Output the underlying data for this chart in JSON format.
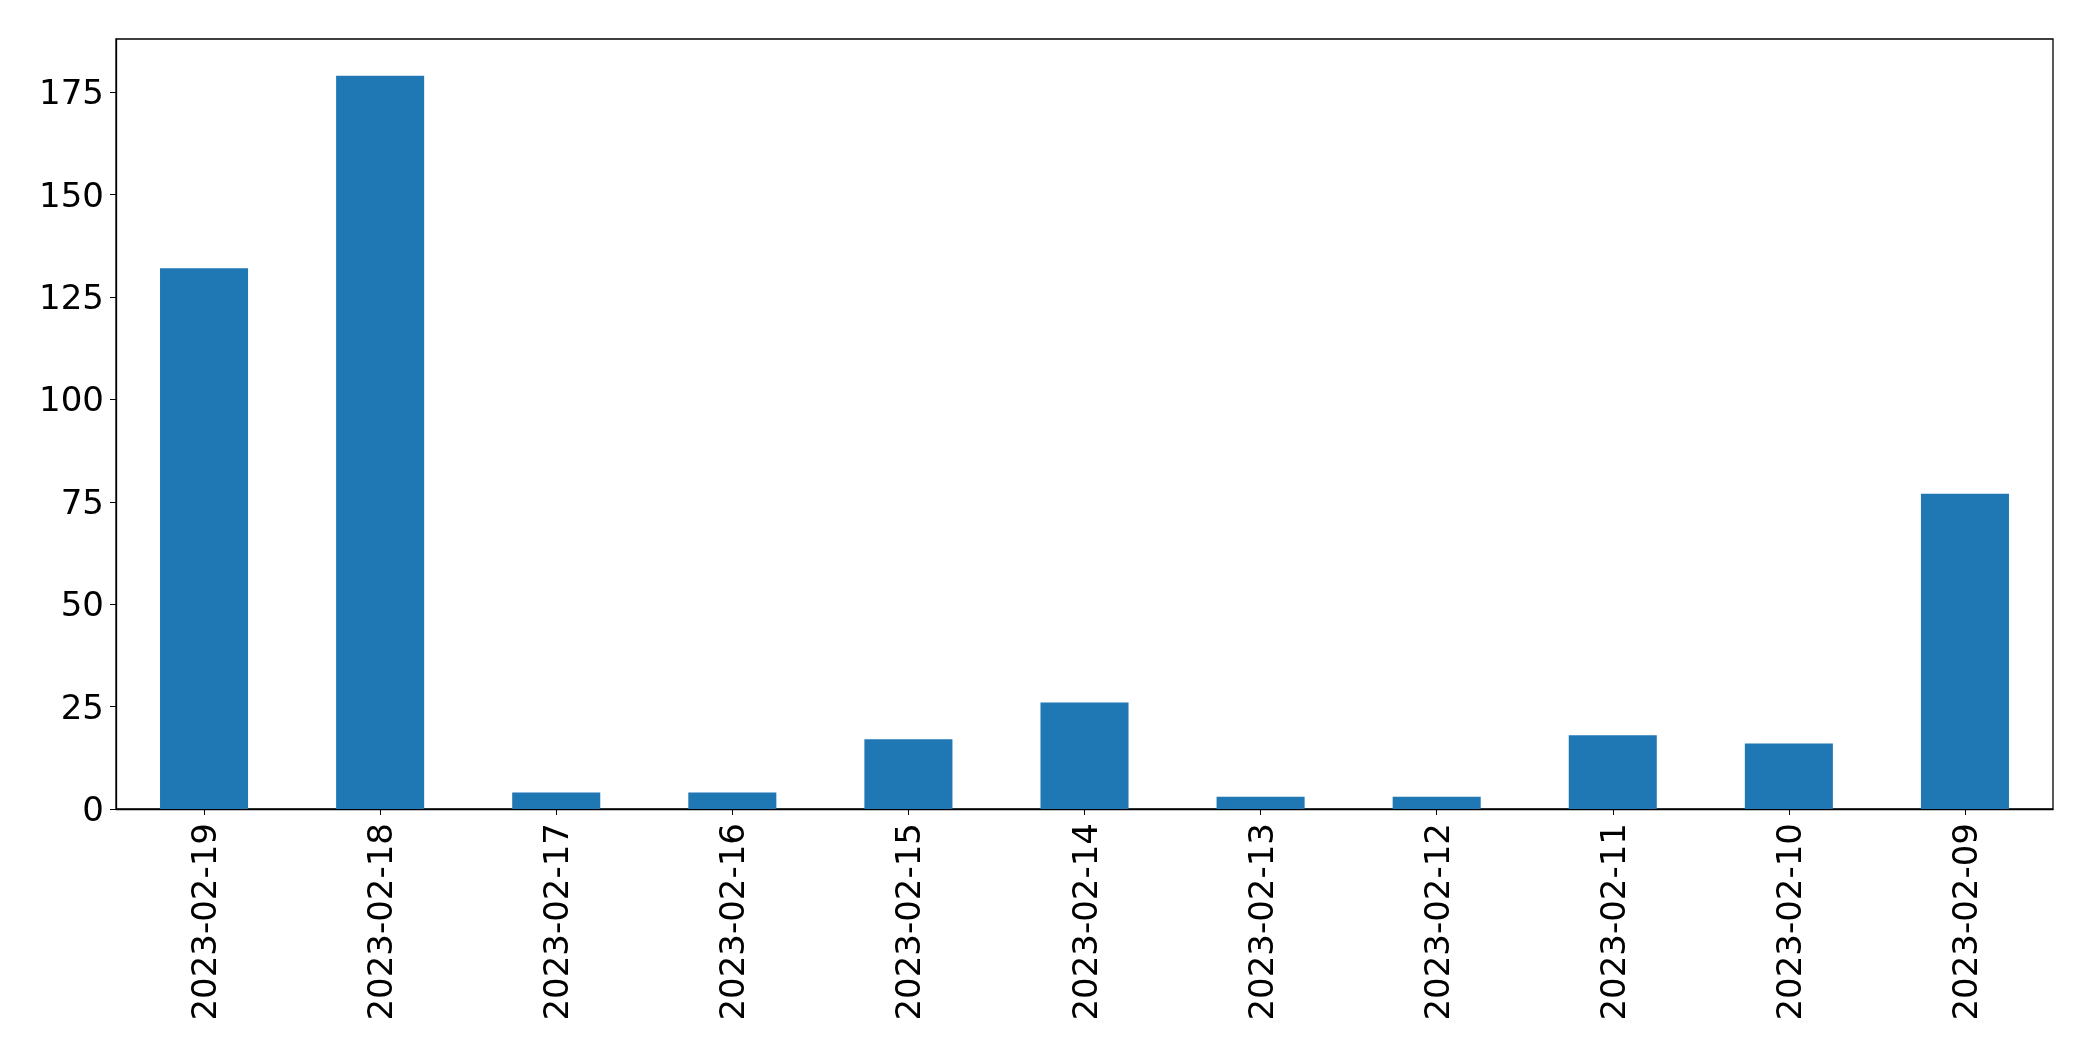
{
  "chart_data": {
    "type": "bar",
    "categories": [
      "2023-02-19",
      "2023-02-18",
      "2023-02-17",
      "2023-02-16",
      "2023-02-15",
      "2023-02-14",
      "2023-02-13",
      "2023-02-12",
      "2023-02-11",
      "2023-02-10",
      "2023-02-09"
    ],
    "values": [
      132,
      179,
      4,
      4,
      17,
      26,
      3,
      3,
      18,
      16,
      77
    ],
    "color": "#1f77b4",
    "ylim": [
      0,
      188
    ],
    "yticks": [
      0,
      25,
      50,
      75,
      100,
      125,
      150,
      175
    ]
  }
}
